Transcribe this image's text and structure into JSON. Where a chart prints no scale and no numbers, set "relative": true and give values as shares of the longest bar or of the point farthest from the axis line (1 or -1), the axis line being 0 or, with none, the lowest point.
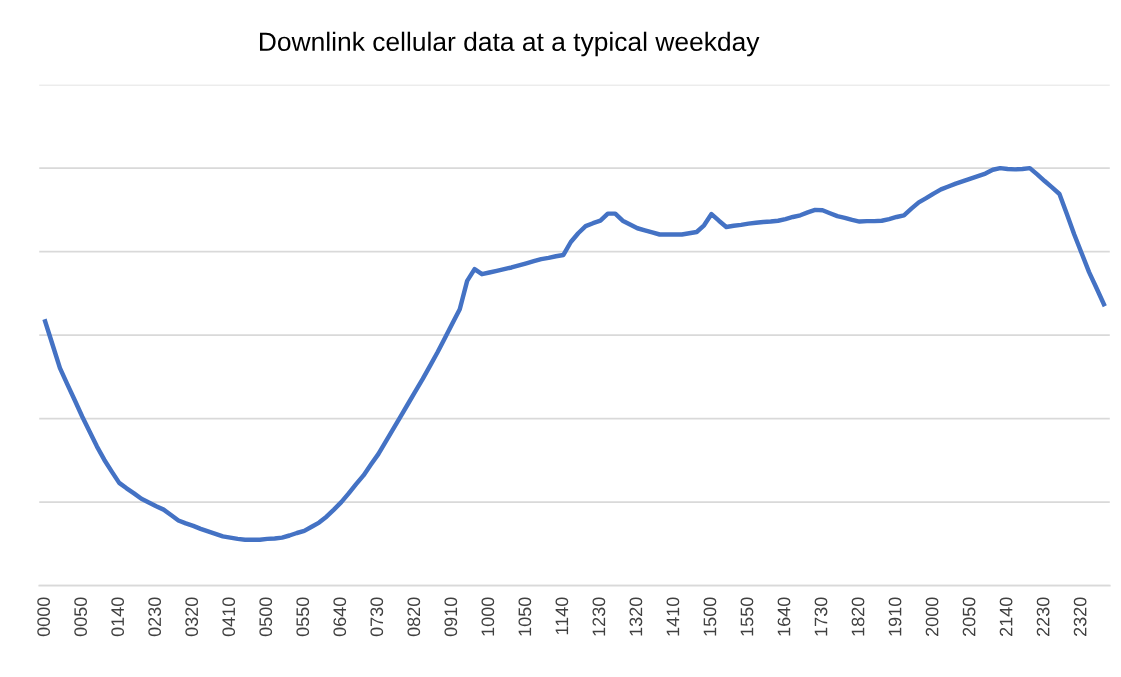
{
  "chart_data": {
    "type": "line",
    "title": "Downlink cellular data at a typical weekday",
    "relative": true,
    "grid": "y",
    "line_style": "solid",
    "categories": [
      "0000",
      null,
      null,
      null,
      null,
      "0050",
      null,
      null,
      null,
      null,
      "0140",
      null,
      null,
      null,
      null,
      "0230",
      null,
      null,
      null,
      null,
      "0320",
      null,
      null,
      null,
      null,
      "0410",
      null,
      null,
      null,
      null,
      "0500",
      null,
      null,
      null,
      null,
      "0550",
      null,
      null,
      null,
      null,
      "0640",
      null,
      null,
      null,
      null,
      "0730",
      null,
      null,
      null,
      null,
      "0820",
      null,
      null,
      null,
      null,
      "0910",
      null,
      null,
      null,
      null,
      "1000",
      null,
      null,
      null,
      null,
      "1050",
      null,
      null,
      null,
      null,
      "1140",
      null,
      null,
      null,
      null,
      "1230",
      null,
      null,
      null,
      null,
      "1320",
      null,
      null,
      null,
      null,
      "1410",
      null,
      null,
      null,
      null,
      "1500",
      null,
      null,
      null,
      null,
      "1550",
      null,
      null,
      null,
      null,
      "1640",
      null,
      null,
      null,
      null,
      "1730",
      null,
      null,
      null,
      null,
      "1820",
      null,
      null,
      null,
      null,
      "1910",
      null,
      null,
      null,
      null,
      "2000",
      null,
      null,
      null,
      null,
      "2050",
      null,
      null,
      null,
      null,
      "2140",
      null,
      null,
      null,
      null,
      "2230",
      null,
      null,
      null,
      null,
      "2320",
      null,
      null,
      null
    ],
    "series": [
      {
        "color": "#4472c4",
        "values": [
          0.633,
          0.577,
          0.521,
          0.482,
          0.444,
          0.405,
          0.369,
          0.333,
          0.301,
          0.273,
          0.246,
          0.233,
          0.221,
          0.208,
          0.199,
          0.19,
          0.182,
          0.169,
          0.156,
          0.149,
          0.143,
          0.136,
          0.13,
          0.124,
          0.118,
          0.115,
          0.112,
          0.11,
          0.11,
          0.11,
          0.112,
          0.113,
          0.115,
          0.12,
          0.126,
          0.131,
          0.141,
          0.151,
          0.165,
          0.182,
          0.2,
          0.221,
          0.243,
          0.264,
          0.29,
          0.315,
          0.345,
          0.375,
          0.405,
          0.435,
          0.465,
          0.495,
          0.527,
          0.559,
          0.593,
          0.628,
          0.662,
          0.73,
          0.758,
          0.746,
          0.75,
          0.754,
          0.758,
          0.762,
          0.767,
          0.772,
          0.777,
          0.782,
          0.785,
          0.789,
          0.792,
          0.823,
          0.844,
          0.861,
          0.868,
          0.874,
          0.891,
          0.891,
          0.874,
          0.865,
          0.856,
          0.851,
          0.846,
          0.841,
          0.841,
          0.841,
          0.841,
          0.844,
          0.847,
          0.863,
          0.89,
          0.874,
          0.859,
          0.862,
          0.864,
          0.867,
          0.869,
          0.871,
          0.872,
          0.874,
          0.878,
          0.883,
          0.887,
          0.894,
          0.9,
          0.899,
          0.892,
          0.885,
          0.881,
          0.876,
          0.872,
          0.873,
          0.873,
          0.874,
          0.878,
          0.883,
          0.887,
          0.903,
          0.918,
          0.928,
          0.939,
          0.949,
          0.956,
          0.963,
          0.969,
          0.975,
          0.981,
          0.987,
          0.996,
          1.0,
          0.998,
          0.997,
          0.998,
          1.0,
          0.985,
          0.969,
          0.954,
          0.938,
          0.89,
          0.841,
          0.796,
          0.751,
          0.713,
          0.674
        ]
      }
    ]
  }
}
